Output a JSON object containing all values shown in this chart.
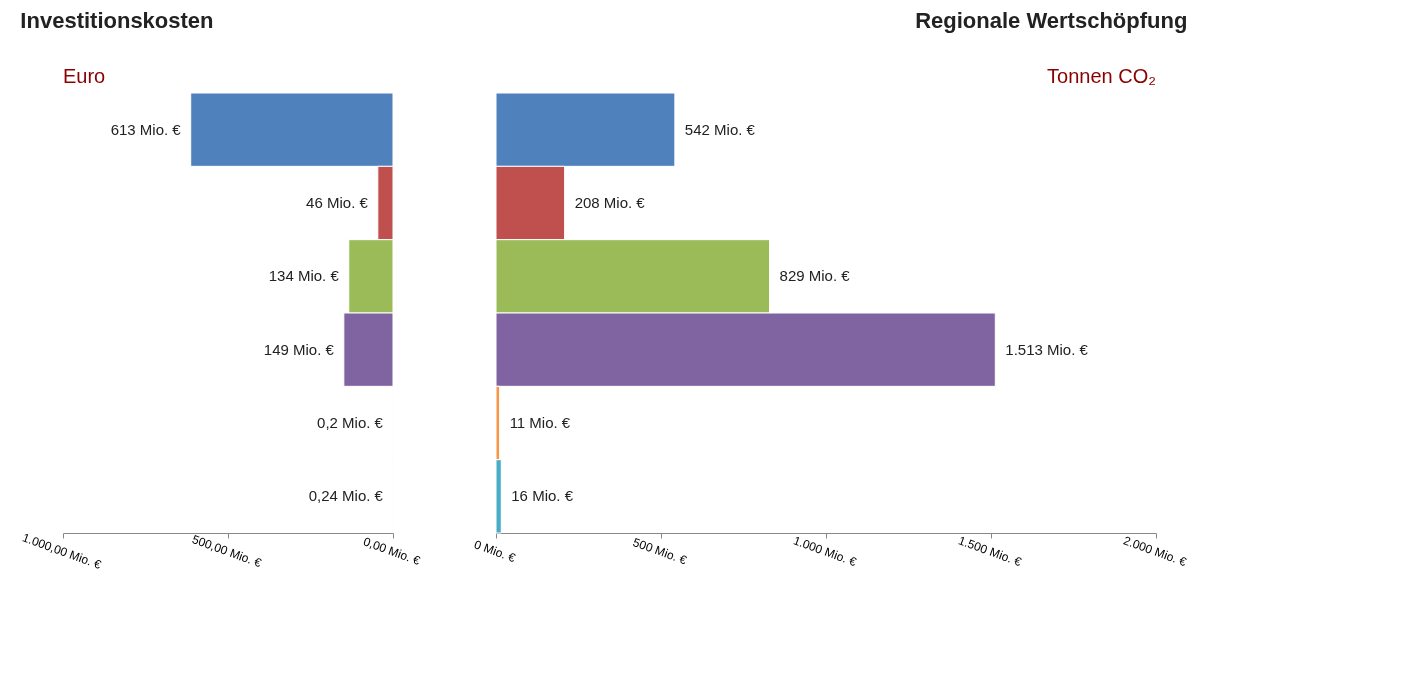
{
  "chart_data": [
    {
      "type": "bar",
      "orientation": "horizontal",
      "title": "Investitionskosten",
      "annotations": [
        "Euro"
      ],
      "categories": [
        null,
        null,
        null,
        null,
        null,
        null
      ],
      "values": [
        613,
        46,
        134,
        149,
        0.2,
        0.24
      ],
      "colors": [
        "#4f81bd",
        "#c0504d",
        "#9bbb59",
        "#8064a2",
        "#f79646",
        "#4bacc6"
      ],
      "value_labels": [
        "613 Mio. €",
        "46 Mio. €",
        "134 Mio. €",
        "149 Mio. €",
        "0,2 Mio. €",
        "0,24 Mio. €"
      ],
      "xlim": [
        1000,
        0
      ],
      "xticks": [
        {
          "value": 1000,
          "label": "1.000,00 Mio. €"
        },
        {
          "value": 500,
          "label": "500,00 Mio. €"
        },
        {
          "value": 0,
          "label": "0,00 Mio. €"
        }
      ],
      "tick_labels": "x",
      "grid": false,
      "legend": false
    },
    {
      "type": "bar",
      "orientation": "horizontal",
      "title": "Regionale Wertschöpfung",
      "annotations": [
        "Tonnen CO₂"
      ],
      "categories": [
        null,
        null,
        null,
        null,
        null,
        null
      ],
      "values": [
        542,
        208,
        829,
        1513,
        11,
        16
      ],
      "colors": [
        "#4f81bd",
        "#c0504d",
        "#9bbb59",
        "#8064a2",
        "#f79646",
        "#4bacc6"
      ],
      "value_labels": [
        "542 Mio. €",
        "208 Mio. €",
        "829 Mio. €",
        "1.513 Mio. €",
        "11 Mio. €",
        "16 Mio. €"
      ],
      "xlim": [
        0,
        2000
      ],
      "xticks": [
        {
          "value": 0,
          "label": "0 Mio. €"
        },
        {
          "value": 500,
          "label": "500 Mio. €"
        },
        {
          "value": 1000,
          "label": "1.000 Mio. €"
        },
        {
          "value": 1500,
          "label": "1.500 Mio. €"
        },
        {
          "value": 2000,
          "label": "2.000 Mio. €"
        }
      ],
      "tick_labels": "x",
      "grid": false,
      "legend": false
    }
  ]
}
